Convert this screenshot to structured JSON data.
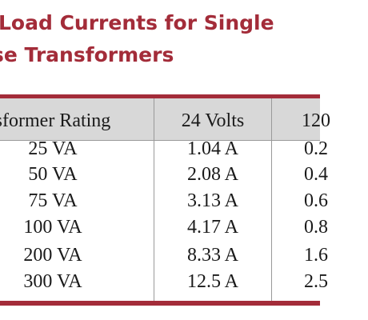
{
  "title": {
    "line1": "Load Currents for Single",
    "line2": "se Transformers"
  },
  "table": {
    "headers": [
      "sformer Rating",
      "24 Volts",
      "120"
    ],
    "rows": [
      [
        "25 VA",
        "1.04 A",
        "0.2"
      ],
      [
        "50 VA",
        "2.08 A",
        "0.4"
      ],
      [
        "75 VA",
        "3.13 A",
        "0.6"
      ],
      [
        "100 VA",
        "4.17 A",
        "0.8"
      ],
      [
        "200 VA",
        "8.33 A",
        "1.6"
      ],
      [
        "300 VA",
        "12.5 A",
        "2.5"
      ]
    ]
  },
  "colors": {
    "accent": "#a32c39",
    "header_bg": "#d8d8d8",
    "text": "#1a1a1a"
  }
}
